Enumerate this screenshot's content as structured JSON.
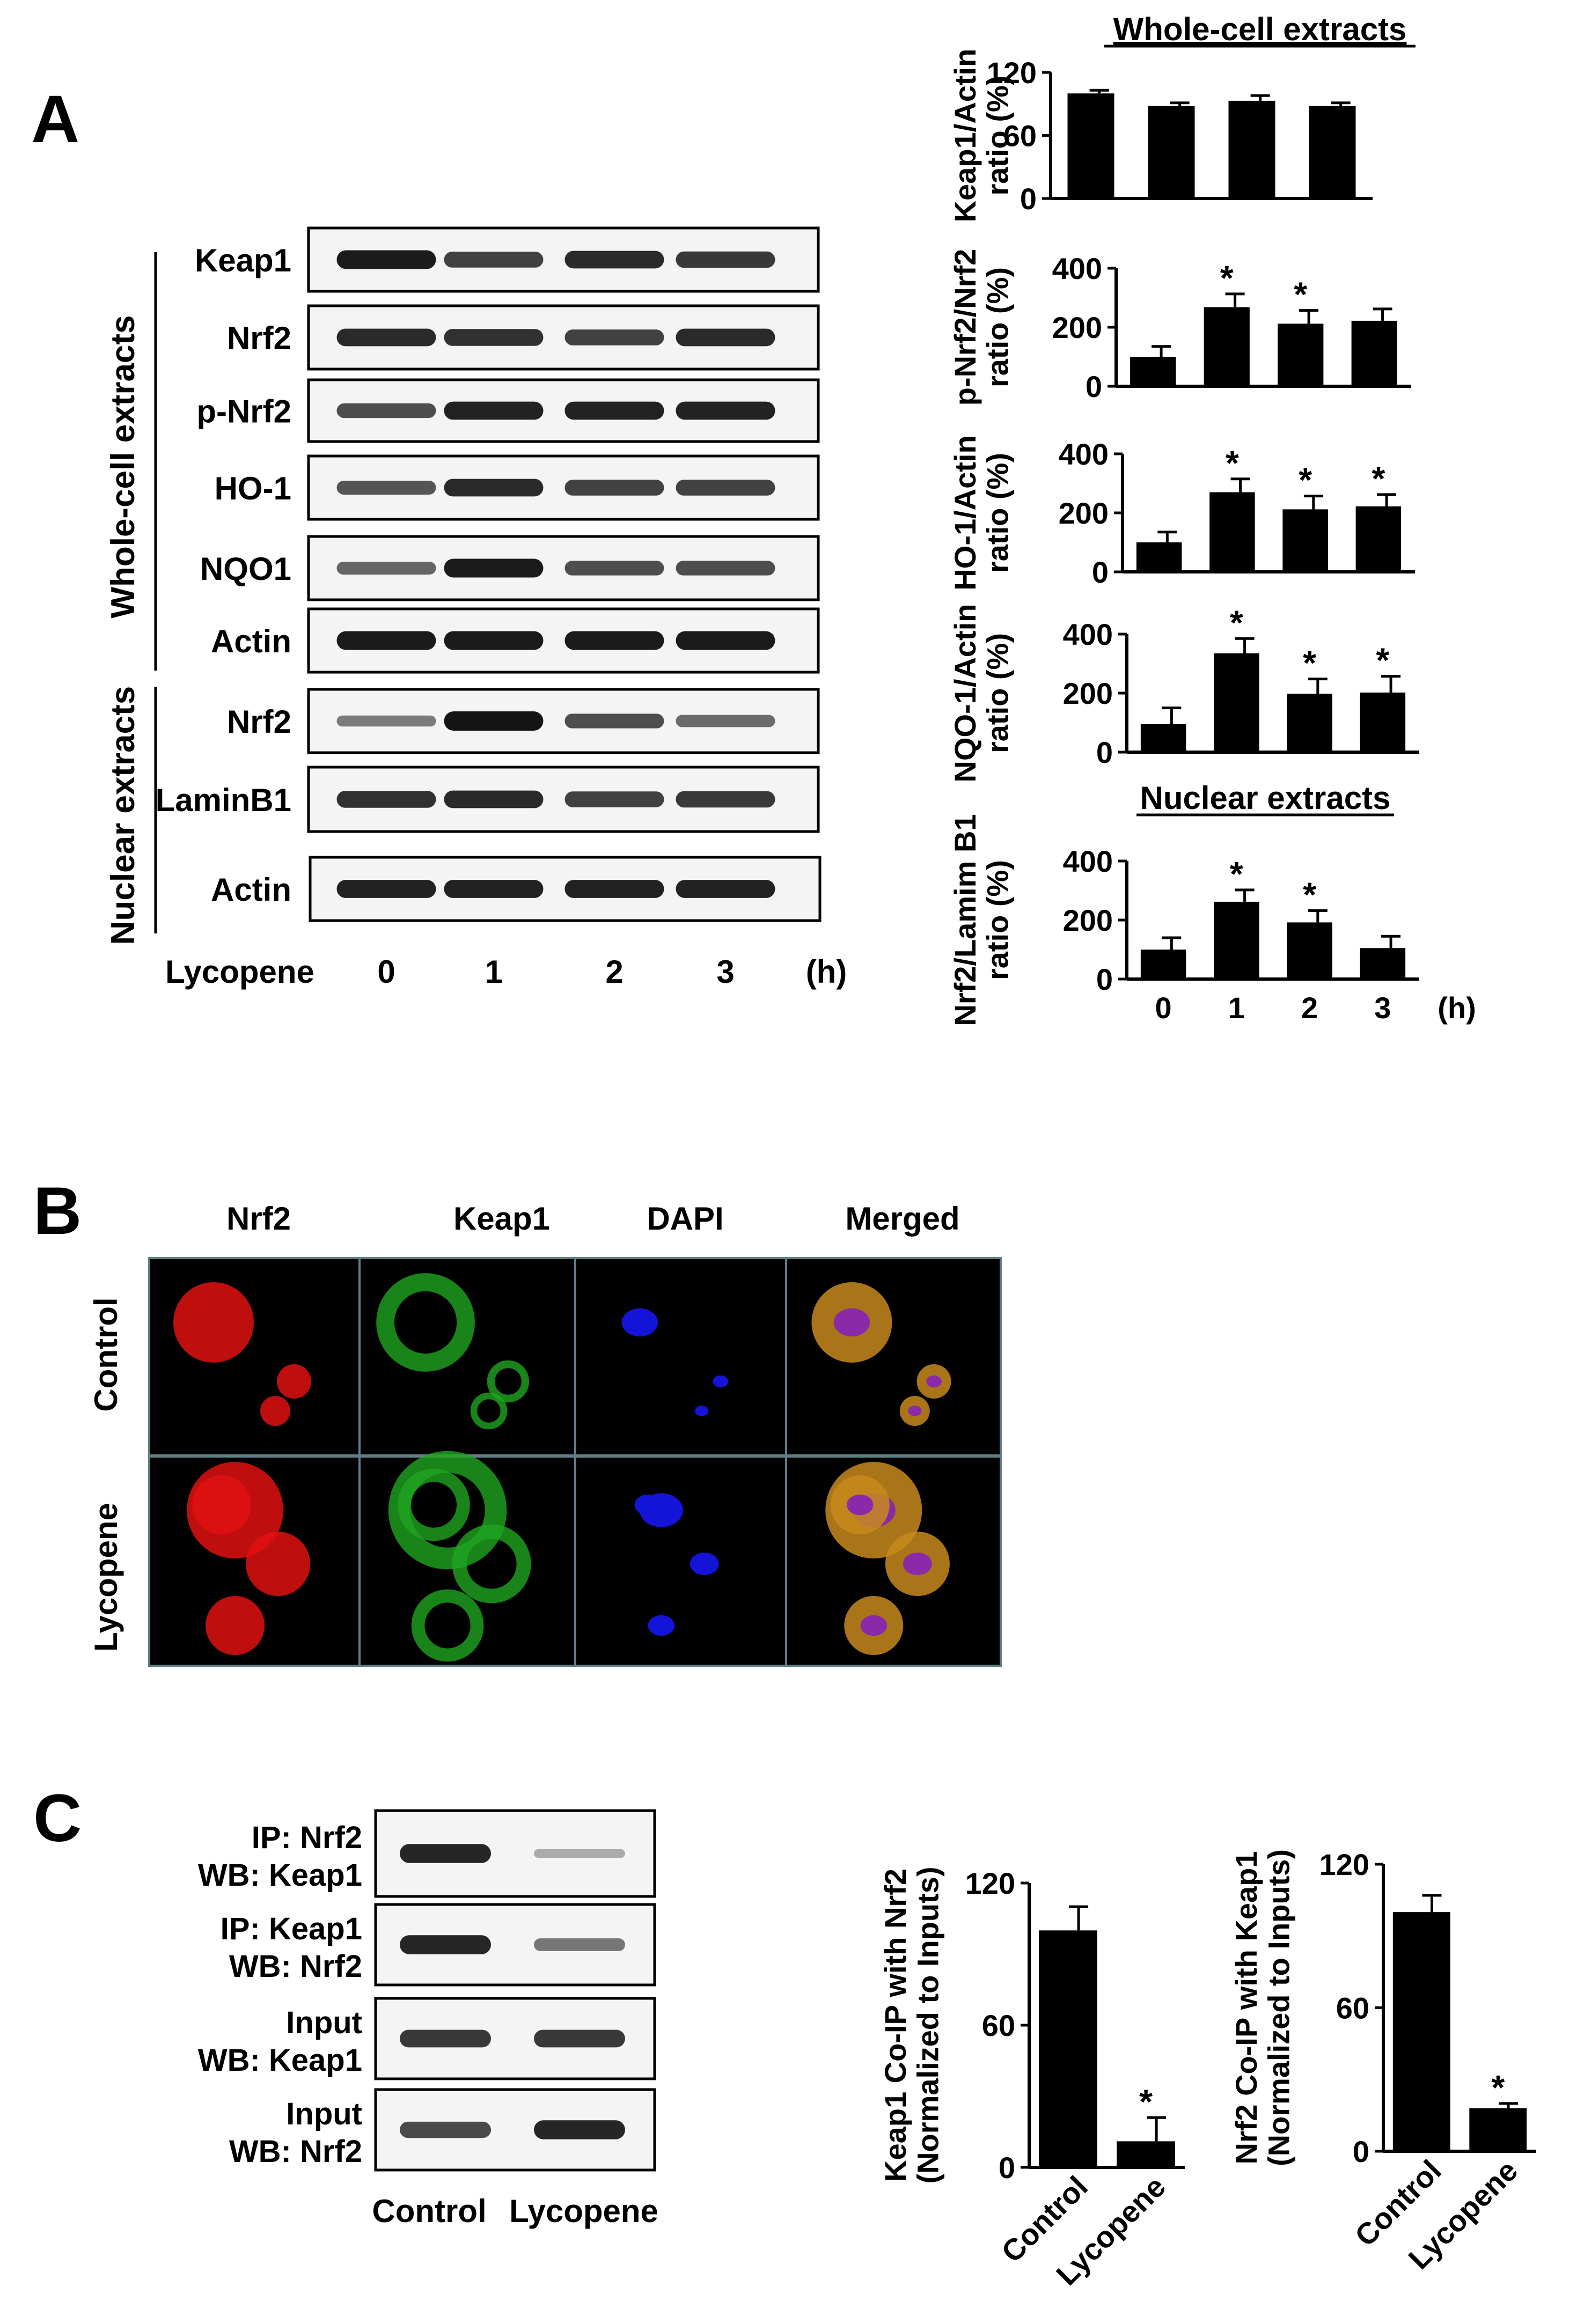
{
  "figure": {
    "panels": {
      "A": "A",
      "B": "B",
      "C": "C"
    }
  },
  "panel_a": {
    "group_labels": {
      "whole": "Whole-cell extracts",
      "nuclear": "Nuclear extracts"
    },
    "treatment_label": "Lycopene",
    "lane_labels": [
      "0",
      "1",
      "2",
      "3"
    ],
    "time_unit": "(h)",
    "blots": [
      {
        "label": "Keap1",
        "bands": [
          0.95,
          0.7,
          0.85,
          0.75
        ]
      },
      {
        "label": "Nrf2",
        "bands": [
          0.85,
          0.8,
          0.7,
          0.85
        ]
      },
      {
        "label": "p-Nrf2",
        "bands": [
          0.6,
          0.9,
          0.9,
          0.9
        ]
      },
      {
        "label": "HO-1",
        "bands": [
          0.55,
          0.85,
          0.7,
          0.7
        ]
      },
      {
        "label": "NQO1",
        "bands": [
          0.45,
          0.95,
          0.6,
          0.6
        ]
      },
      {
        "label": "Actin",
        "bands": [
          0.95,
          0.95,
          0.95,
          0.95
        ]
      },
      {
        "label": "Nrf2",
        "bands": [
          0.3,
          1.0,
          0.6,
          0.4
        ]
      },
      {
        "label": "LaminB1",
        "bands": [
          0.8,
          0.85,
          0.7,
          0.75
        ]
      },
      {
        "label": "Actin",
        "bands": [
          0.9,
          0.9,
          0.9,
          0.9
        ]
      }
    ]
  },
  "panel_b": {
    "column_labels": [
      "Nrf2",
      "Keap1",
      "DAPI",
      "Merged"
    ],
    "row_labels": [
      "Control",
      "Lycopene"
    ],
    "channel_colors": {
      "nrf2": "#e01010",
      "keap1": "#1fa51f",
      "dapi": "#1414d8"
    }
  },
  "panel_c": {
    "blots": [
      {
        "line1": "IP: Nrf2",
        "line2": "WB: Keap1",
        "bands": [
          0.9,
          0.15
        ]
      },
      {
        "line1": "IP: Keap1",
        "line2": "WB: Nrf2",
        "bands": [
          0.9,
          0.45
        ]
      },
      {
        "line1": "Input",
        "line2": "WB: Keap1",
        "bands": [
          0.8,
          0.8
        ]
      },
      {
        "line1": "Input",
        "line2": "WB: Nrf2",
        "bands": [
          0.7,
          0.9
        ]
      }
    ],
    "lane_labels": [
      "Control",
      "Lycopene"
    ]
  },
  "chart_data": [
    {
      "type": "bar",
      "section_title": "Whole-cell extracts",
      "ylabel_lines": [
        "Keap1/Actin",
        "ratio (%)"
      ],
      "categories": [
        "0",
        "1",
        "2",
        "3"
      ],
      "values": [
        100,
        88,
        93,
        88
      ],
      "errors": [
        3,
        3,
        5,
        3
      ],
      "significant": [
        false,
        false,
        false,
        false
      ],
      "yticks": [
        0,
        60,
        120
      ],
      "ylim": [
        0,
        120
      ]
    },
    {
      "type": "bar",
      "ylabel_lines": [
        "p-Nrf2/Nrf2",
        "ratio (%)"
      ],
      "categories": [
        "0",
        "1",
        "2",
        "3"
      ],
      "values": [
        100,
        268,
        212,
        222
      ],
      "errors": [
        35,
        45,
        45,
        40
      ],
      "significant": [
        false,
        true,
        true,
        false
      ],
      "yticks": [
        0,
        200,
        400
      ],
      "ylim": [
        0,
        400
      ]
    },
    {
      "type": "bar",
      "ylabel_lines": [
        "HO-1/Actin",
        "ratio (%)"
      ],
      "categories": [
        "0",
        "1",
        "2",
        "3"
      ],
      "values": [
        100,
        270,
        212,
        222
      ],
      "errors": [
        35,
        45,
        45,
        40
      ],
      "significant": [
        false,
        true,
        true,
        true
      ],
      "yticks": [
        0,
        200,
        400
      ],
      "ylim": [
        0,
        400
      ]
    },
    {
      "type": "bar",
      "ylabel_lines": [
        "NQO-1/Actin",
        "ratio (%)"
      ],
      "categories": [
        "0",
        "1",
        "2",
        "3"
      ],
      "values": [
        95,
        335,
        198,
        202
      ],
      "errors": [
        55,
        50,
        50,
        55
      ],
      "significant": [
        false,
        true,
        true,
        true
      ],
      "yticks": [
        0,
        200,
        400
      ],
      "ylim": [
        0,
        400
      ]
    },
    {
      "type": "bar",
      "section_title": "Nuclear extracts",
      "ylabel_lines": [
        "Nrf2/Lamim B1",
        "ratio (%)"
      ],
      "categories": [
        "0",
        "1",
        "2",
        "3"
      ],
      "x_unit": "(h)",
      "values": [
        100,
        262,
        192,
        105
      ],
      "errors": [
        40,
        40,
        40,
        40
      ],
      "significant": [
        false,
        true,
        true,
        false
      ],
      "yticks": [
        0,
        200,
        400
      ],
      "ylim": [
        0,
        400
      ]
    },
    {
      "type": "bar",
      "ylabel_lines": [
        "Keap1 Co-IP with Nrf2",
        "(Normalized to Inputs)"
      ],
      "categories": [
        "Control",
        "Lycopene"
      ],
      "values": [
        100,
        11
      ],
      "errors": [
        10,
        10
      ],
      "significant": [
        false,
        true
      ],
      "yticks": [
        0,
        60,
        120
      ],
      "ylim": [
        0,
        120
      ]
    },
    {
      "type": "bar",
      "ylabel_lines": [
        "Nrf2 Co-IP with Keap1",
        "(Normalized to Inputs)"
      ],
      "categories": [
        "Control",
        "Lycopene"
      ],
      "values": [
        100,
        18
      ],
      "errors": [
        7,
        2
      ],
      "significant": [
        false,
        true
      ],
      "yticks": [
        0,
        60,
        120
      ],
      "ylim": [
        0,
        120
      ]
    }
  ]
}
